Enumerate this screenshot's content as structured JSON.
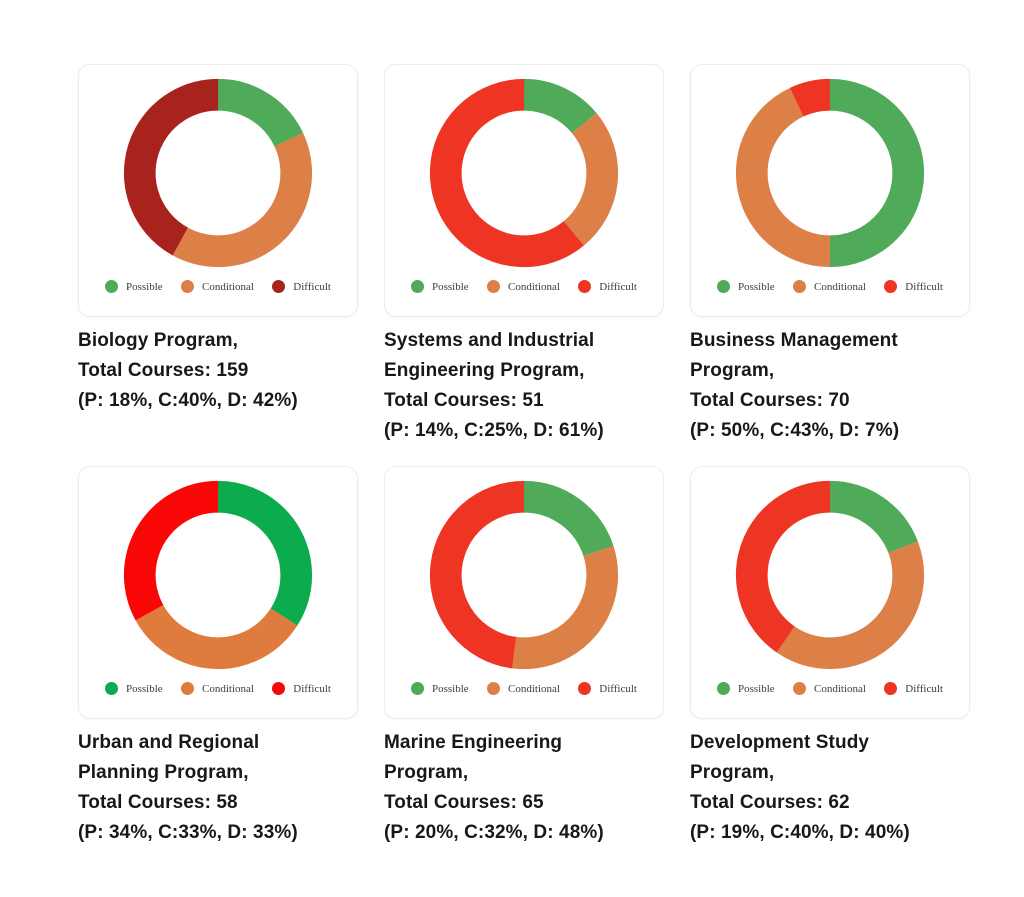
{
  "chart_data": [
    {
      "type": "pie",
      "subtype": "donut",
      "program_line": "Biology Program,",
      "total_line": "Total Courses: 159",
      "pct_line": "(P: 18%, C:40%, D: 42%)",
      "total_courses": 159,
      "categories": [
        "Possible",
        "Conditional",
        "Difficult"
      ],
      "values": [
        18,
        40,
        42
      ],
      "colors": [
        "#4faa5a",
        "#dd8047",
        "#a9231e"
      ],
      "legend_position": "bottom",
      "start_angle_deg": 0,
      "direction": "clockwise"
    },
    {
      "type": "pie",
      "subtype": "donut",
      "program_line": "Systems and Industrial Engineering Program,",
      "total_line": "Total Courses: 51",
      "pct_line": "(P: 14%, C:25%, D: 61%)",
      "total_courses": 51,
      "categories": [
        "Possible",
        "Conditional",
        "Difficult"
      ],
      "values": [
        14,
        25,
        61
      ],
      "colors": [
        "#4faa5a",
        "#dd8047",
        "#ee3524"
      ],
      "legend_position": "bottom",
      "start_angle_deg": 0,
      "direction": "clockwise"
    },
    {
      "type": "pie",
      "subtype": "donut",
      "program_line": "Business Management Program,",
      "total_line": "Total Courses: 70",
      "pct_line": "(P: 50%, C:43%, D: 7%)",
      "total_courses": 70,
      "categories": [
        "Possible",
        "Conditional",
        "Difficult"
      ],
      "values": [
        50,
        43,
        7
      ],
      "colors": [
        "#4faa5a",
        "#dd8047",
        "#ee3524"
      ],
      "legend_position": "bottom",
      "start_angle_deg": 0,
      "direction": "clockwise"
    },
    {
      "type": "pie",
      "subtype": "donut",
      "program_line": "Urban and Regional Planning Program,",
      "total_line": "Total Courses: 58",
      "pct_line": "(P: 34%, C:33%, D: 33%)",
      "total_courses": 58,
      "categories": [
        "Possible",
        "Conditional",
        "Difficult"
      ],
      "values": [
        34,
        33,
        33
      ],
      "colors": [
        "#0cab4d",
        "#e07b3e",
        "#f90606"
      ],
      "legend_position": "bottom",
      "start_angle_deg": 0,
      "direction": "clockwise"
    },
    {
      "type": "pie",
      "subtype": "donut",
      "program_line": "Marine Engineering Program,",
      "total_line": "Total Courses: 65",
      "pct_line": "(P: 20%, C:32%, D: 48%)",
      "total_courses": 65,
      "categories": [
        "Possible",
        "Conditional",
        "Difficult"
      ],
      "values": [
        20,
        32,
        48
      ],
      "colors": [
        "#4faa5a",
        "#dd8047",
        "#ee3524"
      ],
      "legend_position": "bottom",
      "start_angle_deg": 0,
      "direction": "clockwise"
    },
    {
      "type": "pie",
      "subtype": "donut",
      "program_line": "Development Study Program,",
      "total_line": "Total Courses: 62",
      "pct_line": "(P: 19%, C:40%, D: 40%)",
      "total_courses": 62,
      "categories": [
        "Possible",
        "Conditional",
        "Difficult"
      ],
      "values": [
        19,
        40,
        40
      ],
      "colors": [
        "#4faa5a",
        "#dd8047",
        "#ee3524"
      ],
      "legend_position": "bottom",
      "start_angle_deg": 0,
      "direction": "clockwise"
    }
  ]
}
